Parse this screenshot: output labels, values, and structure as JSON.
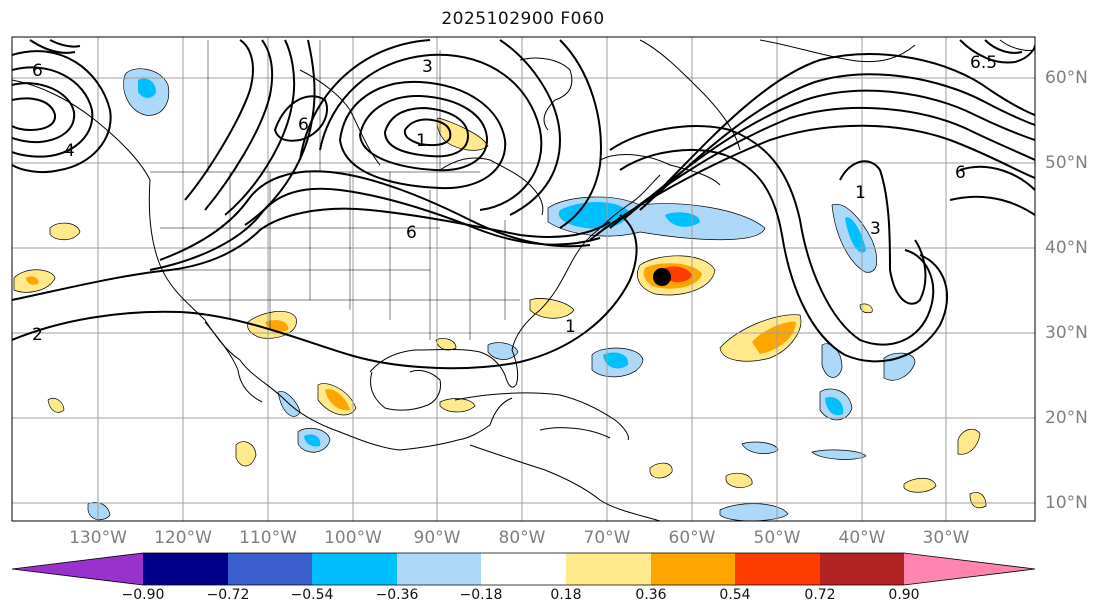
{
  "title": "2025102900 F060",
  "lat_labels": [
    "60°N",
    "50°N",
    "40°N",
    "30°N",
    "20°N",
    "10°N"
  ],
  "lon_labels": [
    "130°W",
    "120°W",
    "110°W",
    "100°W",
    "90°W",
    "80°W",
    "70°W",
    "60°W",
    "50°W",
    "40°W",
    "30°W"
  ],
  "contour_labels": [
    "6",
    "1",
    "6",
    "3",
    "6",
    "1",
    "2",
    "1",
    "3",
    "6",
    "6.5",
    "4"
  ],
  "colorbar": {
    "ticks": [
      "−0.90",
      "−0.72",
      "−0.54",
      "−0.36",
      "−0.18",
      "0.18",
      "0.36",
      "0.54",
      "0.72",
      "0.90"
    ],
    "colors": [
      "#9932cc",
      "#00008b",
      "#3a5fcd",
      "#00bfff",
      "#add8f7",
      "#ffffff",
      "#ffe98a",
      "#ffa500",
      "#ff3c00",
      "#b22222",
      "#ff85b0"
    ]
  },
  "marker": {
    "lon": -64,
    "lat": 36.5,
    "color": "#000000"
  }
}
